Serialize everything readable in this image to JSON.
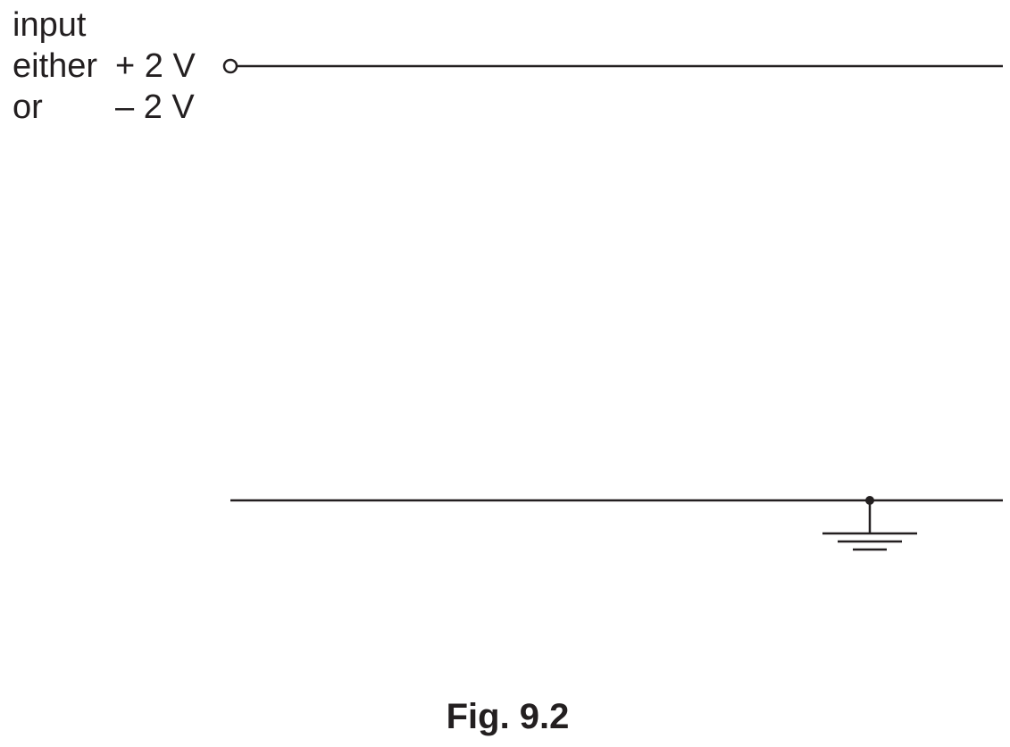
{
  "input_label": {
    "line1": "input",
    "line2_word": "either",
    "line2_value": "+ 2 V",
    "line3_word": "or",
    "line3_value": "– 2 V"
  },
  "caption": "Fig. 9.2",
  "colors": {
    "ink": "#231f20",
    "background": "#ffffff"
  },
  "icons": {
    "terminal": "input-terminal-icon",
    "ground": "ground-icon",
    "junction": "junction-dot-icon"
  }
}
